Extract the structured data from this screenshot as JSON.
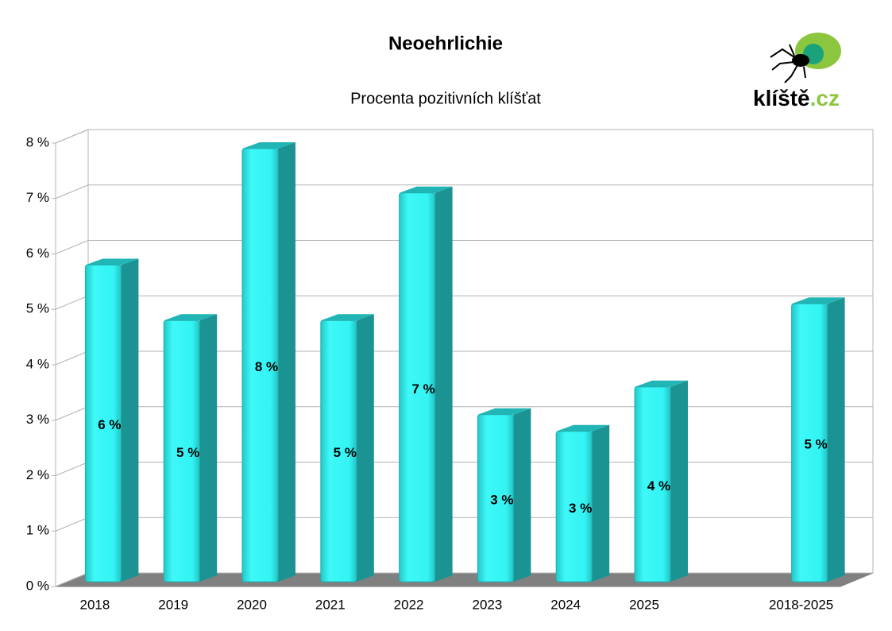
{
  "chart_data": {
    "type": "bar3d",
    "title": "Neoehrlichie",
    "subtitle": "Procenta pozitivních klíšťat",
    "logo_text": "klíště",
    "logo_domain": ".cz",
    "categories": [
      "2018",
      "2019",
      "2020",
      "2021",
      "2022",
      "2023",
      "2024",
      "2025",
      null,
      "2018-2025"
    ],
    "values": [
      5.8,
      4.8,
      7.9,
      4.8,
      7.1,
      3.1,
      2.8,
      3.6,
      null,
      5.1
    ],
    "value_labels": [
      "6 %",
      "5 %",
      "8 %",
      "5 %",
      "7 %",
      "3 %",
      "3 %",
      "4 %",
      null,
      "5 %"
    ],
    "color": "#33f5f5",
    "ylim": [
      0,
      8
    ],
    "yticks": [
      {
        "value": 0,
        "label": "0 %"
      },
      {
        "value": 1,
        "label": "1 %"
      },
      {
        "value": 2,
        "label": "2 %"
      },
      {
        "value": 3,
        "label": "3 %"
      },
      {
        "value": 4,
        "label": "4 %"
      },
      {
        "value": 5,
        "label": "5 %"
      },
      {
        "value": 6,
        "label": "6 %"
      },
      {
        "value": 7,
        "label": "7 %"
      },
      {
        "value": 8,
        "label": "8 %"
      }
    ],
    "grid": true
  }
}
